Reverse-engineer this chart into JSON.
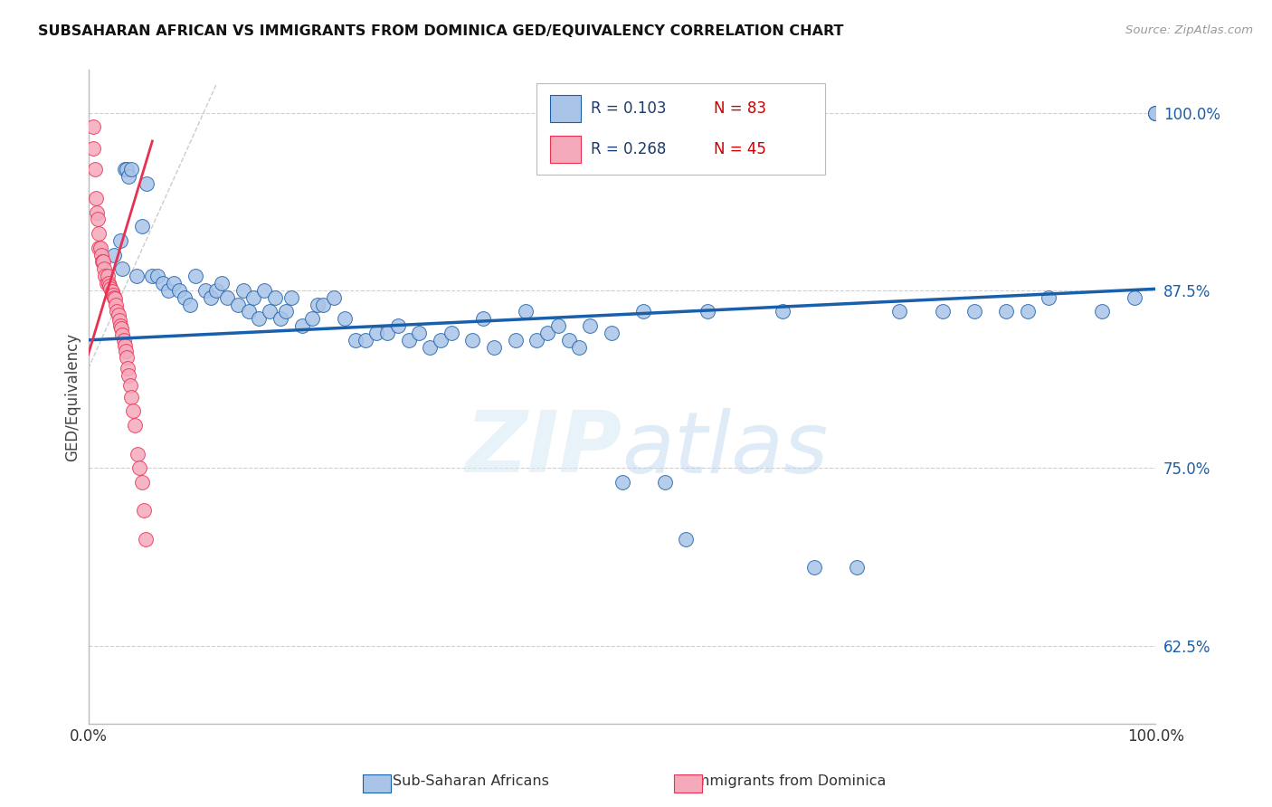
{
  "title": "SUBSAHARAN AFRICAN VS IMMIGRANTS FROM DOMINICA GED/EQUIVALENCY CORRELATION CHART",
  "source": "Source: ZipAtlas.com",
  "ylabel": "GED/Equivalency",
  "xlim": [
    0.0,
    1.0
  ],
  "ylim": [
    0.57,
    1.03
  ],
  "yticks": [
    0.625,
    0.75,
    0.875,
    1.0
  ],
  "ytick_labels": [
    "62.5%",
    "75.0%",
    "87.5%",
    "100.0%"
  ],
  "xticks": [
    0.0,
    0.2,
    0.4,
    0.6,
    0.8,
    1.0
  ],
  "xtick_labels": [
    "0.0%",
    "",
    "",
    "",
    "",
    "100.0%"
  ],
  "blue_color": "#aac4e8",
  "pink_color": "#f5aabc",
  "trend_blue": "#1a5faa",
  "trend_pink": "#e83050",
  "ref_line_color": "#cccccc",
  "watermark": "ZIPatlas",
  "blue_scatter_x": [
    0.024,
    0.03,
    0.032,
    0.034,
    0.036,
    0.038,
    0.04,
    0.045,
    0.05,
    0.055,
    0.06,
    0.065,
    0.07,
    0.075,
    0.08,
    0.085,
    0.09,
    0.095,
    0.1,
    0.11,
    0.115,
    0.12,
    0.125,
    0.13,
    0.14,
    0.145,
    0.15,
    0.155,
    0.16,
    0.165,
    0.17,
    0.175,
    0.18,
    0.185,
    0.19,
    0.2,
    0.21,
    0.215,
    0.22,
    0.23,
    0.24,
    0.25,
    0.26,
    0.27,
    0.28,
    0.29,
    0.3,
    0.31,
    0.32,
    0.33,
    0.34,
    0.36,
    0.37,
    0.38,
    0.4,
    0.41,
    0.42,
    0.43,
    0.44,
    0.45,
    0.46,
    0.47,
    0.49,
    0.5,
    0.52,
    0.54,
    0.56,
    0.58,
    0.65,
    0.68,
    0.72,
    0.76,
    0.8,
    0.83,
    0.86,
    0.88,
    0.9,
    0.95,
    0.98,
    1.0,
    1.0,
    1.0
  ],
  "blue_scatter_y": [
    0.9,
    0.91,
    0.89,
    0.96,
    0.96,
    0.955,
    0.96,
    0.885,
    0.92,
    0.95,
    0.885,
    0.885,
    0.88,
    0.875,
    0.88,
    0.875,
    0.87,
    0.865,
    0.885,
    0.875,
    0.87,
    0.875,
    0.88,
    0.87,
    0.865,
    0.875,
    0.86,
    0.87,
    0.855,
    0.875,
    0.86,
    0.87,
    0.855,
    0.86,
    0.87,
    0.85,
    0.855,
    0.865,
    0.865,
    0.87,
    0.855,
    0.84,
    0.84,
    0.845,
    0.845,
    0.85,
    0.84,
    0.845,
    0.835,
    0.84,
    0.845,
    0.84,
    0.855,
    0.835,
    0.84,
    0.86,
    0.84,
    0.845,
    0.85,
    0.84,
    0.835,
    0.85,
    0.845,
    0.74,
    0.86,
    0.74,
    0.7,
    0.86,
    0.86,
    0.68,
    0.68,
    0.86,
    0.86,
    0.86,
    0.86,
    0.86,
    0.87,
    0.86,
    0.87,
    1.0,
    1.0,
    1.0
  ],
  "pink_scatter_x": [
    0.005,
    0.005,
    0.006,
    0.007,
    0.008,
    0.009,
    0.01,
    0.01,
    0.011,
    0.012,
    0.013,
    0.014,
    0.015,
    0.016,
    0.017,
    0.018,
    0.019,
    0.02,
    0.021,
    0.022,
    0.023,
    0.024,
    0.025,
    0.026,
    0.027,
    0.028,
    0.029,
    0.03,
    0.031,
    0.032,
    0.033,
    0.034,
    0.035,
    0.036,
    0.037,
    0.038,
    0.039,
    0.04,
    0.042,
    0.044,
    0.046,
    0.048,
    0.05,
    0.052,
    0.054
  ],
  "pink_scatter_y": [
    0.99,
    0.975,
    0.96,
    0.94,
    0.93,
    0.925,
    0.915,
    0.905,
    0.905,
    0.9,
    0.895,
    0.895,
    0.89,
    0.885,
    0.88,
    0.885,
    0.88,
    0.878,
    0.876,
    0.874,
    0.872,
    0.87,
    0.869,
    0.865,
    0.86,
    0.858,
    0.854,
    0.85,
    0.848,
    0.844,
    0.84,
    0.836,
    0.832,
    0.828,
    0.82,
    0.815,
    0.808,
    0.8,
    0.79,
    0.78,
    0.76,
    0.75,
    0.74,
    0.72,
    0.7
  ],
  "blue_trend_x0": 0.0,
  "blue_trend_x1": 1.0,
  "blue_trend_y0": 0.84,
  "blue_trend_y1": 0.876,
  "pink_trend_x0": 0.0,
  "pink_trend_x1": 0.06,
  "pink_trend_y0": 0.83,
  "pink_trend_y1": 0.98
}
